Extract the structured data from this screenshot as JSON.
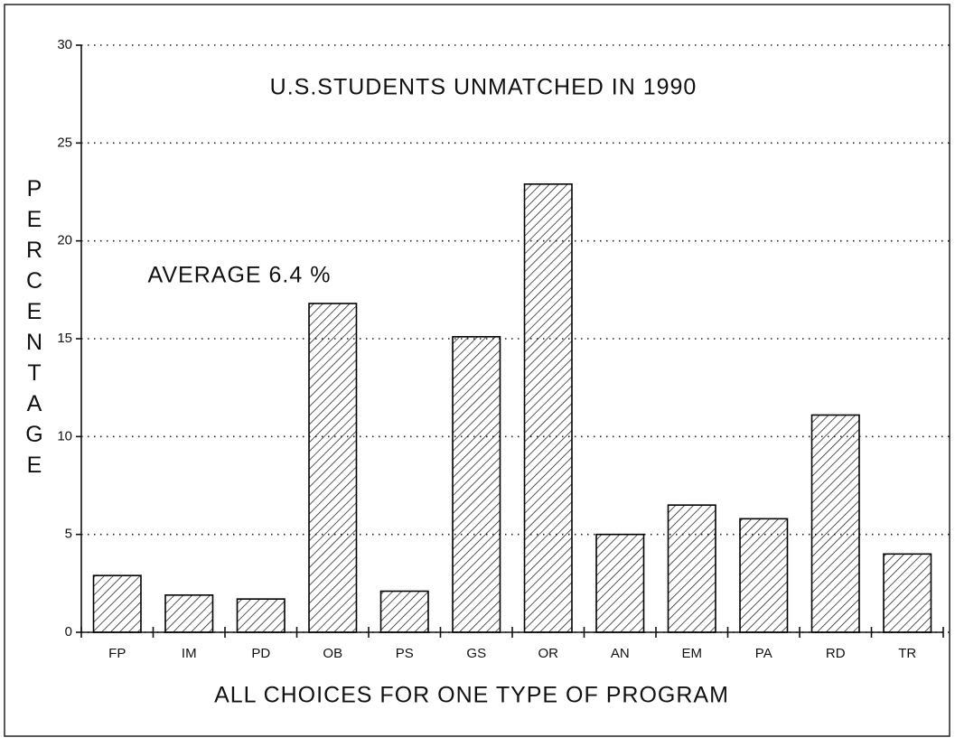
{
  "chart_data": {
    "type": "bar",
    "title": "U.S.STUDENTS UNMATCHED IN 1990",
    "annotation": "AVERAGE 6.4 %",
    "x_label": "ALL CHOICES FOR ONE TYPE OF PROGRAM",
    "y_label": "PERCENTAGE",
    "categories": [
      "FP",
      "IM",
      "PD",
      "OB",
      "PS",
      "GS",
      "OR",
      "AN",
      "EM",
      "PA",
      "RD",
      "TR"
    ],
    "values": [
      2.9,
      1.9,
      1.7,
      16.8,
      2.1,
      15.1,
      22.9,
      5.0,
      6.5,
      5.8,
      11.1,
      4.0
    ],
    "color": "#000000",
    "ylim": [
      0,
      30
    ],
    "yticks": [
      0,
      5,
      10,
      15,
      20,
      25,
      30
    ],
    "grid": true
  }
}
